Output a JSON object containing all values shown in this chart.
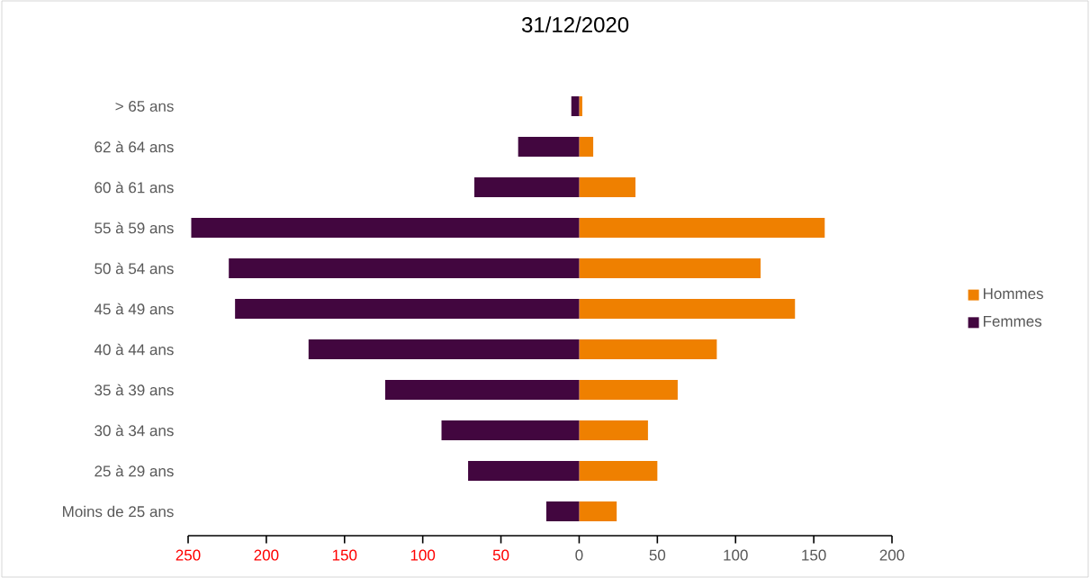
{
  "chart_data": {
    "type": "bar",
    "orientation": "horizontal",
    "title": "31/12/2020",
    "categories": [
      "> 65 ans",
      "62 à 64 ans",
      "60 à 61 ans",
      "55 à 59 ans",
      "50 à 54 ans",
      "45 à 49 ans",
      "40 à 44 ans",
      "35 à 39 ans",
      "30 à 34 ans",
      "25 à 29 ans",
      "Moins de 25 ans"
    ],
    "series": [
      {
        "name": "Hommes",
        "color": "#ef8000",
        "values": [
          2,
          9,
          36,
          157,
          116,
          138,
          88,
          63,
          44,
          50,
          24
        ]
      },
      {
        "name": "Femmes",
        "color": "#42063f",
        "values": [
          -5,
          -39,
          -67,
          -248,
          -224,
          -220,
          -173,
          -124,
          -88,
          -71,
          -21
        ]
      }
    ],
    "xlim": [
      -250,
      200
    ],
    "xticks": [
      {
        "value": -250,
        "label": "250"
      },
      {
        "value": -200,
        "label": "200"
      },
      {
        "value": -150,
        "label": "150"
      },
      {
        "value": -100,
        "label": "100"
      },
      {
        "value": -50,
        "label": "50"
      },
      0,
      50,
      100,
      150,
      200
    ],
    "stacked": true,
    "grid": false,
    "legend": "right"
  }
}
